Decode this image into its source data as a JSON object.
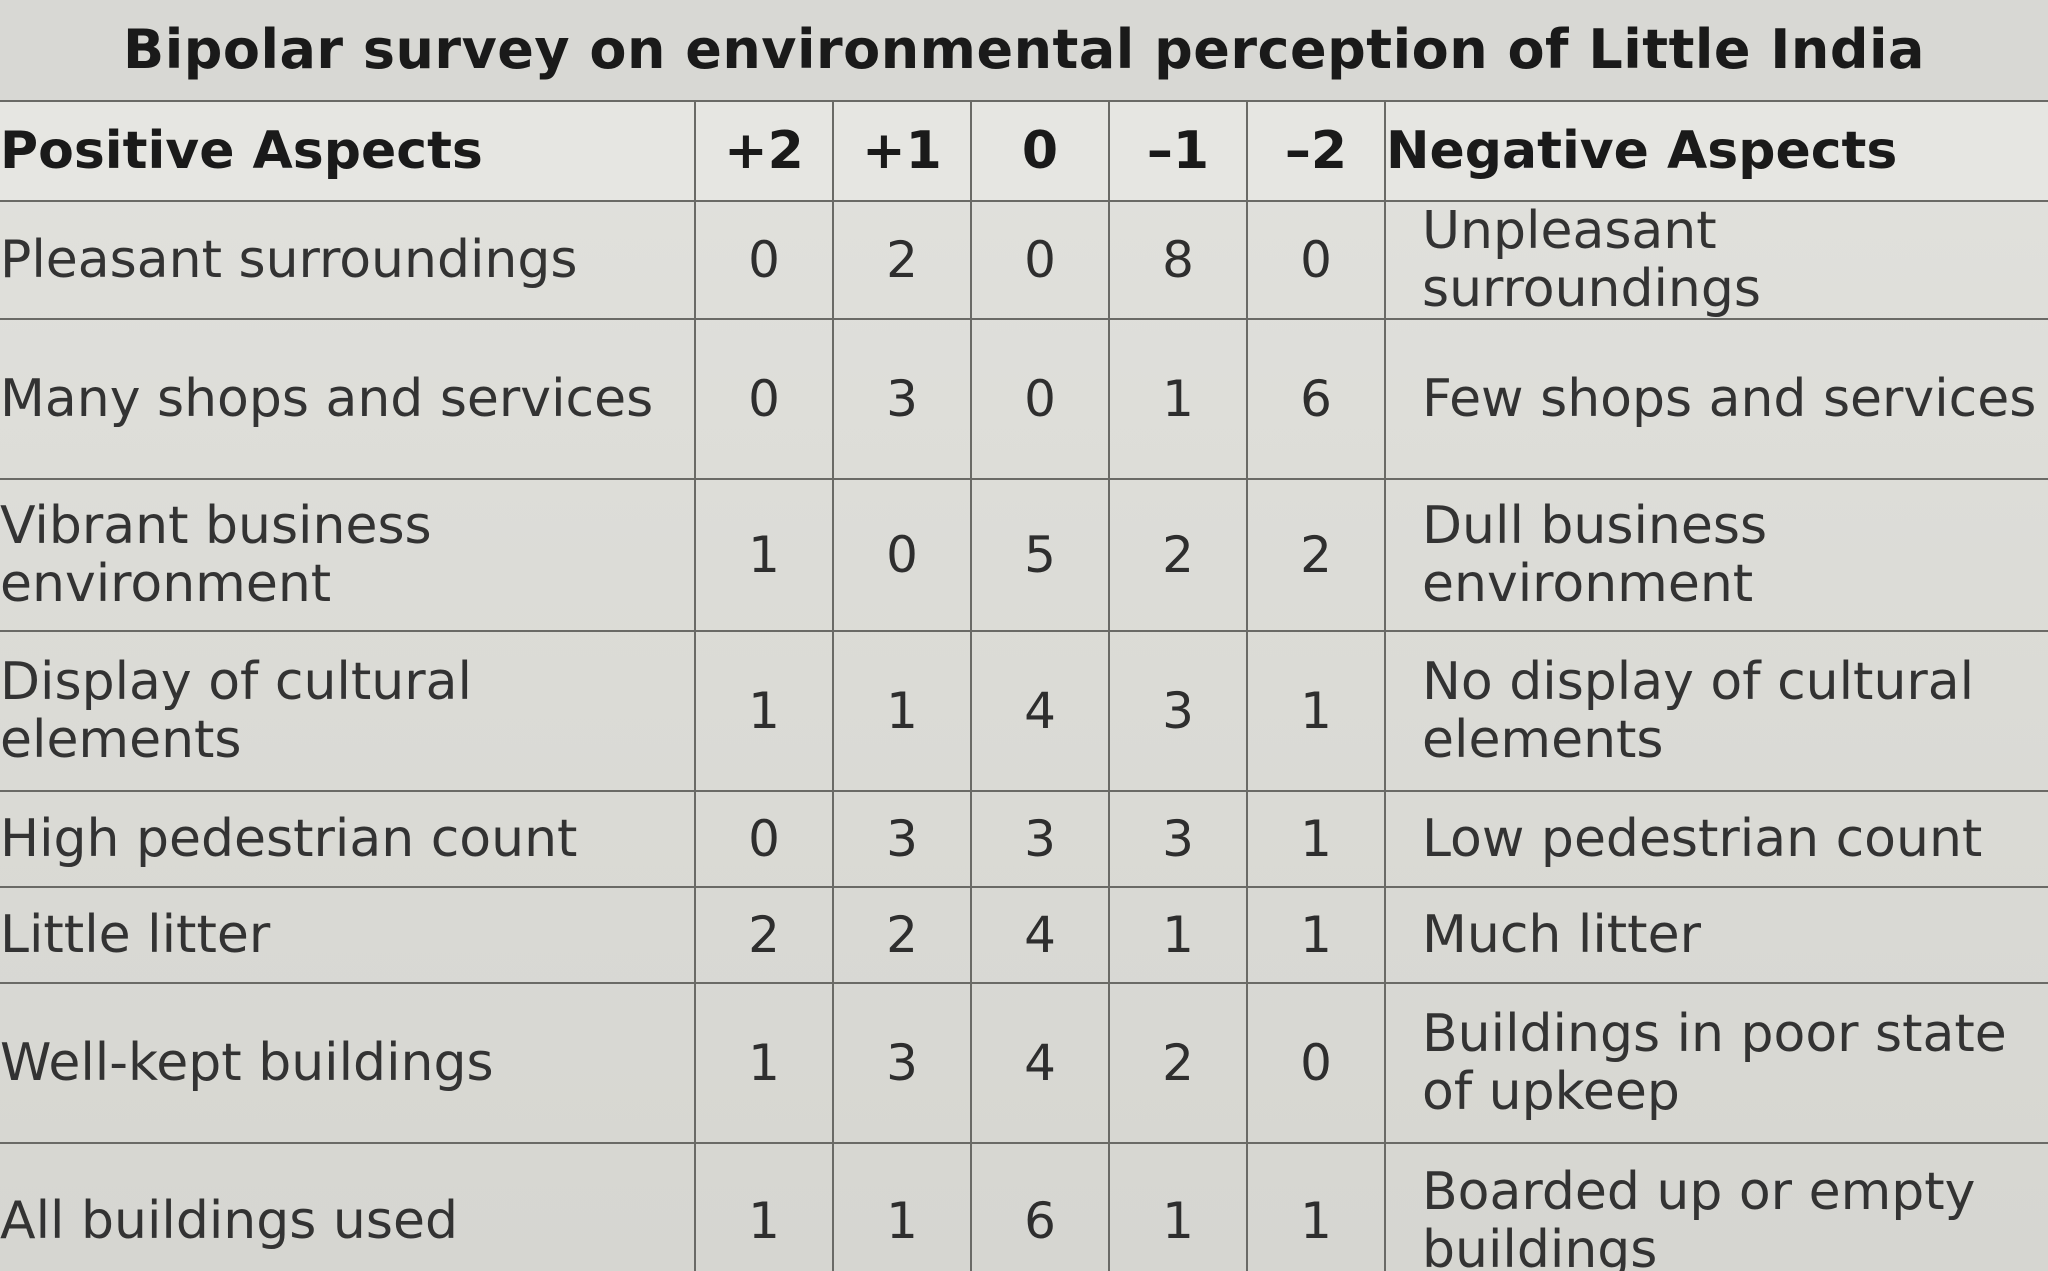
{
  "chart_data": {
    "type": "table",
    "title": "Bipolar survey on environmental perception of Little India",
    "columns": [
      "Positive Aspects",
      "+2",
      "+1",
      "0",
      "–1",
      "–2",
      "Negative Aspects"
    ],
    "rows": [
      {
        "positive": "Pleasant surroundings",
        "values": [
          0,
          2,
          0,
          8,
          0
        ],
        "negative": "Unpleasant surroundings"
      },
      {
        "positive": "Many shops and services",
        "values": [
          0,
          3,
          0,
          1,
          6
        ],
        "negative": "Few shops and services"
      },
      {
        "positive": "Vibrant business environment",
        "values": [
          1,
          0,
          5,
          2,
          2
        ],
        "negative": "Dull business environment"
      },
      {
        "positive": "Display of cultural elements",
        "values": [
          1,
          1,
          4,
          3,
          1
        ],
        "negative": "No display of cultural elements"
      },
      {
        "positive": "High pedestrian count",
        "values": [
          0,
          3,
          3,
          3,
          1
        ],
        "negative": "Low pedestrian count"
      },
      {
        "positive": "Little litter",
        "values": [
          2,
          2,
          4,
          1,
          1
        ],
        "negative": "Much litter"
      },
      {
        "positive": "Well-kept buildings",
        "values": [
          1,
          3,
          4,
          2,
          0
        ],
        "negative": "Buildings in poor state of upkeep"
      },
      {
        "positive": "All buildings used",
        "values": [
          1,
          1,
          6,
          1,
          1
        ],
        "negative": "Boarded up or empty buildings"
      }
    ]
  }
}
